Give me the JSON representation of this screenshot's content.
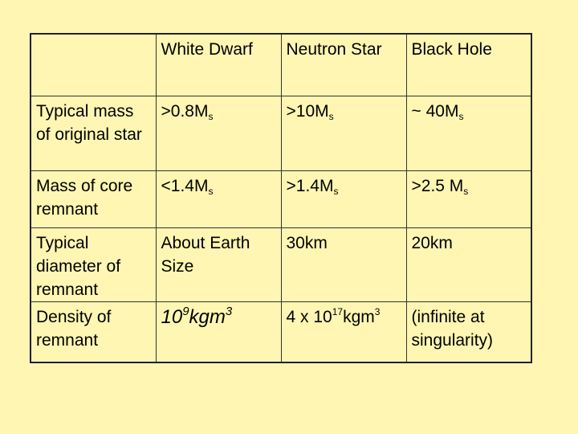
{
  "table": {
    "columns": [
      "White Dwarf",
      "Neutron Star",
      "Black Hole"
    ],
    "rows": [
      {
        "label": "Typical mass of original star",
        "cells": [
          [
            {
              "text": ">0.8M",
              "style": "normal"
            },
            {
              "text": "s",
              "style": "sub"
            }
          ],
          [
            {
              "text": ">10M",
              "style": "normal"
            },
            {
              "text": "s",
              "style": "sub"
            }
          ],
          [
            {
              "text": "~ 40M",
              "style": "normal"
            },
            {
              "text": "s",
              "style": "sub"
            }
          ]
        ]
      },
      {
        "label": "Mass of core remnant",
        "cells": [
          [
            {
              "text": "<1.4M",
              "style": "normal"
            },
            {
              "text": "s",
              "style": "sub"
            }
          ],
          [
            {
              "text": ">1.4M",
              "style": "normal"
            },
            {
              "text": "s",
              "style": "sub"
            }
          ],
          [
            {
              "text": ">2.5 M",
              "style": "normal"
            },
            {
              "text": "s",
              "style": "sub"
            }
          ]
        ]
      },
      {
        "label": "Typical diameter of remnant",
        "cells": [
          [
            {
              "text": "About Earth Size",
              "style": "normal"
            }
          ],
          [
            {
              "text": "30km",
              "style": "normal"
            }
          ],
          [
            {
              "text": "20km",
              "style": "normal"
            }
          ]
        ]
      },
      {
        "label": "Density of remnant",
        "cells": [
          [
            {
              "text": "10",
              "style": "italic"
            },
            {
              "text": "9",
              "style": "italic-sup"
            },
            {
              "text": "kgm",
              "style": "italic"
            },
            {
              "text": "3",
              "style": "italic-sup"
            }
          ],
          [
            {
              "text": "4 x 10",
              "style": "normal"
            },
            {
              "text": "17",
              "style": "sup"
            },
            {
              "text": "kgm",
              "style": "normal"
            },
            {
              "text": "3",
              "style": "sup"
            }
          ],
          [
            {
              "text": "(infinite at singularity)",
              "style": "normal"
            }
          ]
        ]
      }
    ]
  }
}
